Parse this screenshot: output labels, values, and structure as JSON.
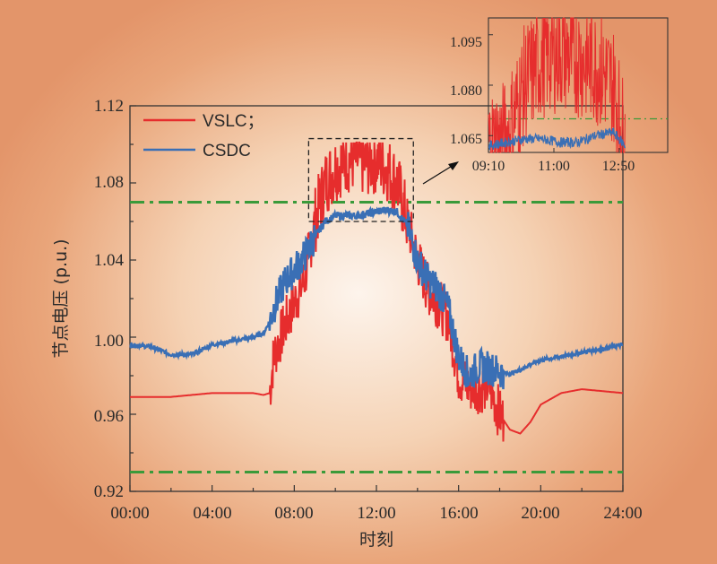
{
  "chart_data": [
    {
      "type": "line",
      "xlabel": "时刻",
      "ylabel": "节点电压 (p.u.)",
      "x_tick_labels": [
        "00:00",
        "04:00",
        "08:00",
        "12:00",
        "16:00",
        "20:00",
        "24:00"
      ],
      "y_tick_labels": [
        "0.92",
        "0.96",
        "1.00",
        "1.04",
        "1.08",
        "1.12"
      ],
      "xlim_hours": [
        0,
        24
      ],
      "ylim": [
        0.92,
        1.12
      ],
      "grid": false,
      "legend_position": "top-left",
      "reference_lines": [
        {
          "y": 1.07,
          "style": "dash-dot",
          "color": "#3a9a3a"
        },
        {
          "y": 0.93,
          "style": "dash-dot",
          "color": "#3a9a3a"
        }
      ],
      "highlight_box": {
        "x": [
          8.7,
          13.8
        ],
        "y": [
          1.06,
          1.103
        ]
      },
      "series": [
        {
          "name": "VSLC；",
          "color": "#e62d2d",
          "x": [
            0,
            1,
            2,
            3,
            4,
            5,
            6,
            6.5,
            6.8,
            7.0,
            7.5,
            8.0,
            8.5,
            9.0,
            9.5,
            10.0,
            10.5,
            11.0,
            11.5,
            12.0,
            12.5,
            13.0,
            13.5,
            14.0,
            14.5,
            15.0,
            15.5,
            16.0,
            16.5,
            17.0,
            17.5,
            18.0,
            18.5,
            19.0,
            19.5,
            20.0,
            21.0,
            22.0,
            23.0,
            24.0
          ],
          "y": [
            0.969,
            0.969,
            0.969,
            0.97,
            0.971,
            0.971,
            0.971,
            0.97,
            0.971,
            0.99,
            1.005,
            1.018,
            1.03,
            1.06,
            1.08,
            1.088,
            1.092,
            1.092,
            1.09,
            1.092,
            1.088,
            1.08,
            1.06,
            1.04,
            1.025,
            1.018,
            1.01,
            0.98,
            0.974,
            0.974,
            0.975,
            0.96,
            0.952,
            0.95,
            0.956,
            0.965,
            0.971,
            0.973,
            0.972,
            0.971
          ]
        },
        {
          "name": "CSDC",
          "color": "#3a6fb5",
          "x": [
            0,
            1,
            2,
            3,
            4,
            5,
            6,
            6.5,
            6.8,
            7.0,
            7.5,
            8.0,
            8.5,
            9.0,
            9.5,
            10.0,
            10.5,
            11.0,
            11.5,
            12.0,
            12.5,
            13.0,
            13.5,
            14.0,
            14.5,
            15.0,
            15.5,
            16.0,
            16.5,
            17.0,
            17.5,
            18.0,
            18.5,
            19.0,
            19.5,
            20.0,
            21.0,
            22.0,
            23.0,
            24.0
          ],
          "y": [
            0.996,
            0.995,
            0.991,
            0.991,
            0.996,
            0.998,
            1.0,
            1.002,
            1.008,
            1.015,
            1.028,
            1.035,
            1.042,
            1.052,
            1.06,
            1.063,
            1.063,
            1.063,
            1.064,
            1.065,
            1.066,
            1.065,
            1.058,
            1.04,
            1.03,
            1.025,
            1.015,
            0.99,
            0.98,
            0.985,
            0.984,
            0.982,
            0.981,
            0.983,
            0.986,
            0.988,
            0.99,
            0.992,
            0.994,
            0.996
          ]
        }
      ]
    },
    {
      "type": "line",
      "inset": true,
      "x_tick_labels": [
        "09:10",
        "11:00",
        "12:50"
      ],
      "y_tick_labels": [
        "1.065",
        "1.080",
        "1.095"
      ],
      "reference_lines": [
        {
          "y": 1.07,
          "style": "dash-dot",
          "color": "#3a9a3a"
        }
      ],
      "series": [
        {
          "name": "VSLC；",
          "color": "#e62d2d",
          "x": [
            "09:10",
            "09:40",
            "10:10",
            "10:40",
            "11:10",
            "11:40",
            "12:10",
            "12:40",
            "13:00"
          ],
          "y": [
            1.062,
            1.064,
            1.08,
            1.088,
            1.09,
            1.088,
            1.086,
            1.08,
            1.062
          ]
        },
        {
          "name": "CSDC",
          "color": "#3a6fb5",
          "x": [
            "09:10",
            "09:40",
            "10:10",
            "10:40",
            "11:10",
            "11:40",
            "12:10",
            "12:40",
            "13:00"
          ],
          "y": [
            1.062,
            1.063,
            1.064,
            1.064,
            1.063,
            1.063,
            1.065,
            1.066,
            1.062
          ]
        }
      ]
    }
  ]
}
